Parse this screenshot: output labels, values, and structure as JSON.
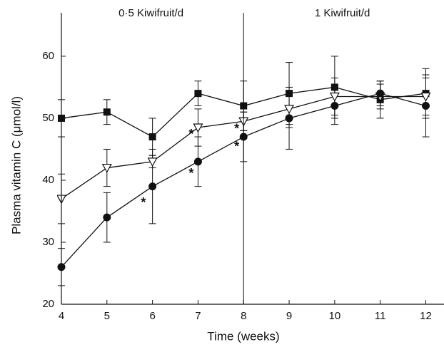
{
  "chart_data": {
    "type": "line",
    "x_label": "Time (weeks)",
    "y_label": "Plasma vitamin C (μmol/l)",
    "x": [
      4,
      5,
      6,
      7,
      8,
      9,
      10,
      11,
      12
    ],
    "series": [
      {
        "marker": "square",
        "color": "#111111",
        "values": [
          50,
          51,
          47,
          54,
          52,
          54,
          55,
          53,
          54
        ],
        "errors": [
          3,
          2,
          3,
          2,
          4,
          5,
          5,
          3,
          4
        ]
      },
      {
        "marker": "triangle-down-open",
        "color": "#111111",
        "values": [
          37,
          42,
          43,
          48.5,
          49.5,
          51.5,
          53.5,
          53.5,
          53.5
        ],
        "errors": [
          4,
          3,
          1,
          3,
          1.5,
          3,
          3,
          2,
          3
        ]
      },
      {
        "marker": "circle",
        "color": "#111111",
        "values": [
          26,
          34,
          39,
          43,
          47,
          50,
          52,
          54,
          52
        ],
        "errors": [
          3,
          4,
          6,
          4,
          4,
          5,
          3,
          2,
          5
        ]
      }
    ],
    "xlim": [
      4,
      12.4
    ],
    "ylim": [
      20,
      67
    ],
    "xticks": [
      4,
      5,
      6,
      7,
      8,
      9,
      10,
      11,
      12
    ],
    "yticks": [
      20,
      30,
      40,
      50,
      60
    ],
    "divider_x": 8,
    "phases": [
      "0·5 Kiwifruit/d",
      "1 Kiwifruit/d"
    ],
    "annotations": [
      {
        "text": "*",
        "x": 5.8,
        "y": 36.3
      },
      {
        "text": "*",
        "x": 6.85,
        "y": 41
      },
      {
        "text": "*",
        "x": 6.85,
        "y": 47.3
      },
      {
        "text": "*",
        "x": 7.85,
        "y": 45.3
      },
      {
        "text": "*",
        "x": 7.85,
        "y": 48.2
      }
    ]
  }
}
